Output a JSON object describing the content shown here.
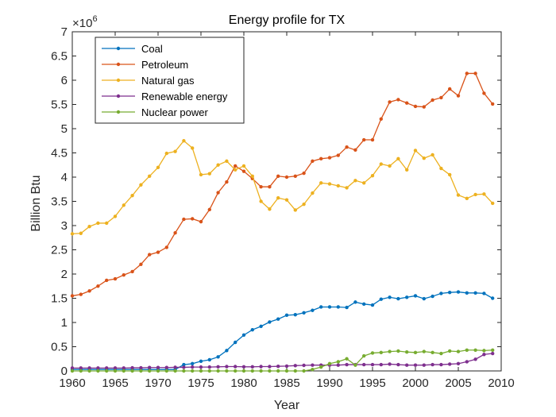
{
  "chart_data": {
    "type": "line",
    "title": "Energy profile for TX",
    "xlabel": "Year",
    "ylabel": "Billion Btu",
    "y_multiplier_label": "×10",
    "y_multiplier_exponent": "6",
    "xlim": [
      1960,
      2010
    ],
    "ylim": [
      0,
      7000000
    ],
    "x_ticks": [
      1960,
      1965,
      1970,
      1975,
      1980,
      1985,
      1990,
      1995,
      2000,
      2005,
      2010
    ],
    "x_tick_labels": [
      "1960",
      "1965",
      "1970",
      "1975",
      "1980",
      "1985",
      "1990",
      "1995",
      "2000",
      "2005",
      "2010"
    ],
    "y_ticks": [
      0,
      500000,
      1000000,
      1500000,
      2000000,
      2500000,
      3000000,
      3500000,
      4000000,
      4500000,
      5000000,
      5500000,
      6000000,
      6500000,
      7000000
    ],
    "y_tick_labels": [
      "0",
      "0.5",
      "1",
      "1.5",
      "2",
      "2.5",
      "3",
      "3.5",
      "4",
      "4.5",
      "5",
      "5.5",
      "6",
      "6.5",
      "7"
    ],
    "grid": false,
    "legend_position": "top-left",
    "x": [
      1960,
      1961,
      1962,
      1963,
      1964,
      1965,
      1966,
      1967,
      1968,
      1969,
      1970,
      1971,
      1972,
      1973,
      1974,
      1975,
      1976,
      1977,
      1978,
      1979,
      1980,
      1981,
      1982,
      1983,
      1984,
      1985,
      1986,
      1987,
      1988,
      1989,
      1990,
      1991,
      1992,
      1993,
      1994,
      1995,
      1996,
      1997,
      1998,
      1999,
      2000,
      2001,
      2002,
      2003,
      2004,
      2005,
      2006,
      2007,
      2008,
      2009
    ],
    "series": [
      {
        "name": "Coal",
        "color": "#0072bd",
        "values": [
          30000,
          30000,
          30000,
          30000,
          30000,
          30000,
          30000,
          30000,
          30000,
          30000,
          30000,
          30000,
          30000,
          130000,
          150000,
          200000,
          230000,
          290000,
          420000,
          590000,
          740000,
          850000,
          920000,
          1010000,
          1070000,
          1150000,
          1160000,
          1200000,
          1250000,
          1320000,
          1320000,
          1320000,
          1310000,
          1420000,
          1380000,
          1360000,
          1480000,
          1520000,
          1490000,
          1520000,
          1550000,
          1490000,
          1540000,
          1600000,
          1620000,
          1630000,
          1610000,
          1610000,
          1600000,
          1500000
        ]
      },
      {
        "name": "Petroleum",
        "color": "#d95319",
        "values": [
          1550000,
          1580000,
          1650000,
          1750000,
          1870000,
          1900000,
          1980000,
          2050000,
          2200000,
          2400000,
          2450000,
          2550000,
          2850000,
          3130000,
          3140000,
          3080000,
          3330000,
          3680000,
          3900000,
          4230000,
          4120000,
          3970000,
          3800000,
          3800000,
          4020000,
          4000000,
          4020000,
          4080000,
          4330000,
          4380000,
          4400000,
          4450000,
          4620000,
          4560000,
          4770000,
          4770000,
          5200000,
          5550000,
          5600000,
          5530000,
          5460000,
          5450000,
          5590000,
          5640000,
          5820000,
          5680000,
          6140000,
          6140000,
          5730000,
          5510000
        ]
      },
      {
        "name": "Natural gas",
        "color": "#edb120",
        "values": [
          2830000,
          2840000,
          2980000,
          3050000,
          3050000,
          3190000,
          3420000,
          3620000,
          3840000,
          4020000,
          4200000,
          4490000,
          4530000,
          4750000,
          4600000,
          4050000,
          4070000,
          4250000,
          4330000,
          4150000,
          4230000,
          4020000,
          3500000,
          3340000,
          3570000,
          3530000,
          3320000,
          3440000,
          3670000,
          3880000,
          3860000,
          3820000,
          3780000,
          3930000,
          3880000,
          4030000,
          4270000,
          4230000,
          4380000,
          4150000,
          4550000,
          4390000,
          4460000,
          4180000,
          4050000,
          3630000,
          3560000,
          3640000,
          3650000,
          3460000
        ]
      },
      {
        "name": "Renewable energy",
        "color": "#7e2f8e",
        "values": [
          60000,
          60000,
          60000,
          60000,
          60000,
          60000,
          60000,
          65000,
          65000,
          70000,
          70000,
          70000,
          75000,
          75000,
          80000,
          80000,
          80000,
          85000,
          90000,
          90000,
          85000,
          85000,
          90000,
          90000,
          95000,
          100000,
          110000,
          115000,
          120000,
          120000,
          120000,
          120000,
          130000,
          130000,
          130000,
          130000,
          130000,
          140000,
          130000,
          120000,
          120000,
          120000,
          130000,
          130000,
          140000,
          150000,
          190000,
          240000,
          340000,
          360000
        ]
      },
      {
        "name": "Nuclear power",
        "color": "#77ac30",
        "values": [
          0,
          0,
          0,
          0,
          0,
          0,
          0,
          0,
          0,
          0,
          0,
          0,
          0,
          0,
          0,
          0,
          0,
          0,
          0,
          0,
          0,
          0,
          0,
          0,
          0,
          0,
          0,
          0,
          30000,
          80000,
          150000,
          190000,
          250000,
          120000,
          310000,
          370000,
          380000,
          400000,
          410000,
          390000,
          380000,
          400000,
          380000,
          360000,
          410000,
          400000,
          430000,
          430000,
          420000,
          430000
        ]
      }
    ]
  }
}
